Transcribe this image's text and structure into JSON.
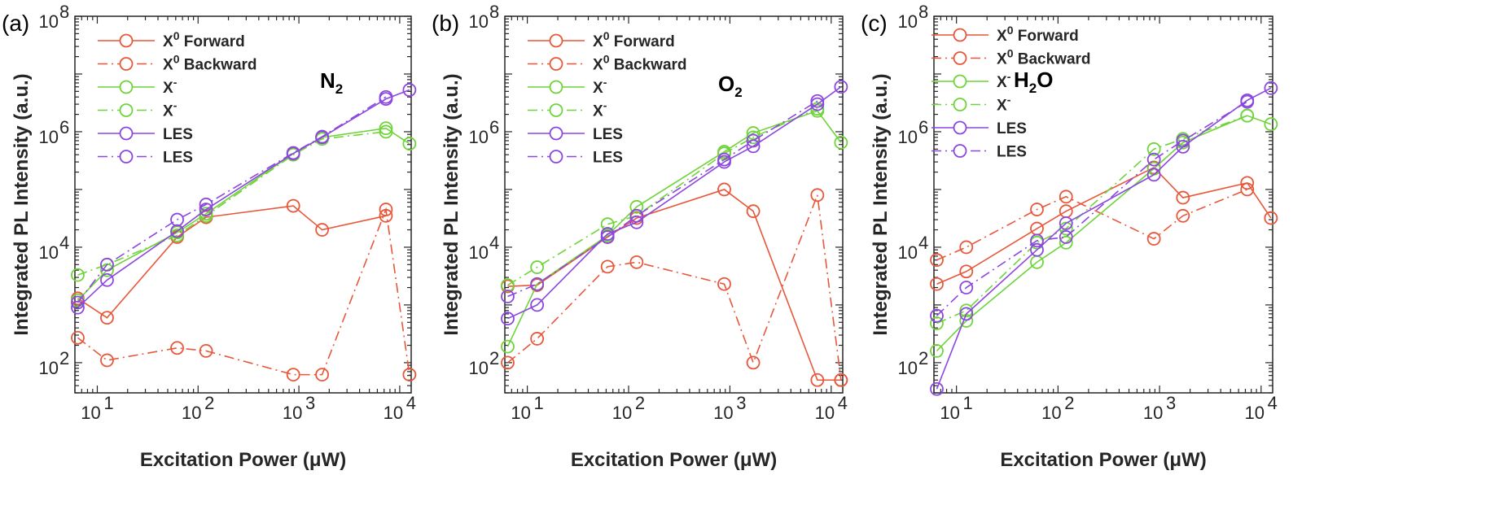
{
  "chart_data": [
    {
      "panel": "(a)",
      "type": "line",
      "annotation": "N",
      "annotation_sub": "2",
      "xscale": "log",
      "yscale": "log",
      "xlim": [
        6.0,
        13000
      ],
      "ylim": [
        30,
        100000000
      ],
      "xlabel": "Excitation Power (μW)",
      "ylabel": "Integrated PL Intensity (a.u.)",
      "xticks": [
        {
          "base": "10",
          "exp": "1",
          "value": 10
        },
        {
          "base": "10",
          "exp": "2",
          "value": 100
        },
        {
          "base": "10",
          "exp": "3",
          "value": 1000
        },
        {
          "base": "10",
          "exp": "4",
          "value": 10000
        }
      ],
      "yticks": [
        {
          "base": "10",
          "exp": "2",
          "value": 100
        },
        {
          "base": "10",
          "exp": "4",
          "value": 10000
        },
        {
          "base": "10",
          "exp": "6",
          "value": 1000000
        },
        {
          "base": "10",
          "exp": "8",
          "value": 100000000
        }
      ],
      "x": [
        6.4,
        12.5,
        62,
        120,
        880,
        1700,
        7300,
        12500
      ],
      "series": [
        {
          "name": "X",
          "sup": "0",
          "suffix": " Forward",
          "style": "solid",
          "color": "#e8573a",
          "values": [
            1300,
            600,
            15000,
            33000,
            52000,
            20000,
            35000,
            null
          ]
        },
        {
          "name": "X",
          "sup": "0",
          "suffix": " Backward",
          "style": "dashdot",
          "color": "#e8573a",
          "values": [
            270,
            110,
            180,
            160,
            62,
            62,
            45000,
            62
          ]
        },
        {
          "name": "X",
          "sup": "-",
          "suffix": "",
          "style": "solid",
          "color": "#6fd43a",
          "values": [
            1200,
            4000,
            18000,
            38000,
            420000,
            800000,
            1150000,
            620000
          ]
        },
        {
          "name": "X",
          "sup": "-",
          "suffix": "",
          "style": "dashdot",
          "color": "#6fd43a",
          "values": [
            3300,
            5000,
            16000,
            35000,
            400000,
            750000,
            1000000,
            null
          ]
        },
        {
          "name": "LES",
          "sup": "",
          "suffix": "",
          "style": "solid",
          "color": "#8b47e0",
          "values": [
            900,
            2700,
            19000,
            45000,
            420000,
            800000,
            3700000,
            5300000
          ]
        },
        {
          "name": "LES",
          "sup": "",
          "suffix": "",
          "style": "dashdot",
          "color": "#8b47e0",
          "values": [
            1100,
            5000,
            30000,
            55000,
            430000,
            820000,
            4000000,
            null
          ]
        }
      ]
    },
    {
      "panel": "(b)",
      "type": "line",
      "annotation": "O",
      "annotation_sub": "2",
      "xscale": "log",
      "yscale": "log",
      "xlim": [
        6.0,
        13000
      ],
      "ylim": [
        30,
        100000000
      ],
      "xlabel": "Excitation Power (μW)",
      "ylabel": "Integrated PL Intensity (a.u.)",
      "xticks": [
        {
          "base": "10",
          "exp": "1",
          "value": 10
        },
        {
          "base": "10",
          "exp": "2",
          "value": 100
        },
        {
          "base": "10",
          "exp": "3",
          "value": 1000
        },
        {
          "base": "10",
          "exp": "4",
          "value": 10000
        }
      ],
      "yticks": [
        {
          "base": "10",
          "exp": "2",
          "value": 100
        },
        {
          "base": "10",
          "exp": "4",
          "value": 10000
        },
        {
          "base": "10",
          "exp": "6",
          "value": 1000000
        },
        {
          "base": "10",
          "exp": "8",
          "value": 100000000
        }
      ],
      "x": [
        6.4,
        12.5,
        62,
        120,
        880,
        1700,
        7300,
        12500
      ],
      "series": [
        {
          "name": "X",
          "sup": "0",
          "suffix": " Forward",
          "style": "solid",
          "color": "#e8573a",
          "values": [
            2100,
            2200,
            15000,
            32000,
            100000,
            42000,
            50,
            50
          ]
        },
        {
          "name": "X",
          "sup": "0",
          "suffix": " Backward",
          "style": "dashdot",
          "color": "#e8573a",
          "values": [
            100,
            260,
            4600,
            5500,
            2300,
            100,
            80000,
            50
          ]
        },
        {
          "name": "X",
          "sup": "-",
          "suffix": "",
          "style": "solid",
          "color": "#6fd43a",
          "values": [
            190,
            2300,
            16000,
            50000,
            450000,
            950000,
            2300000,
            650000
          ]
        },
        {
          "name": "X",
          "sup": "-",
          "suffix": "",
          "style": "dashdot",
          "color": "#6fd43a",
          "values": [
            2200,
            4500,
            25000,
            35000,
            420000,
            800000,
            2500000,
            null
          ]
        },
        {
          "name": "LES",
          "sup": "",
          "suffix": "",
          "style": "solid",
          "color": "#8b47e0",
          "values": [
            580,
            1000,
            17000,
            27000,
            300000,
            560000,
            3000000,
            6000000
          ]
        },
        {
          "name": "LES",
          "sup": "",
          "suffix": "",
          "style": "dashdot",
          "color": "#8b47e0",
          "values": [
            1400,
            2300,
            15000,
            35000,
            330000,
            700000,
            3400000,
            null
          ]
        }
      ]
    },
    {
      "panel": "(c)",
      "type": "line",
      "annotation": "H",
      "annotation_sub": "2",
      "annotation_suffix": "O",
      "xscale": "log",
      "yscale": "log",
      "xlim": [
        6.0,
        13000
      ],
      "ylim": [
        30,
        100000000
      ],
      "xlabel": "Excitation Power (μW)",
      "ylabel": "Integrated PL Intensity (a.u.)",
      "xticks": [
        {
          "base": "10",
          "exp": "1",
          "value": 10
        },
        {
          "base": "10",
          "exp": "2",
          "value": 100
        },
        {
          "base": "10",
          "exp": "3",
          "value": 1000
        },
        {
          "base": "10",
          "exp": "4",
          "value": 10000
        }
      ],
      "yticks": [
        {
          "base": "10",
          "exp": "2",
          "value": 100
        },
        {
          "base": "10",
          "exp": "4",
          "value": 10000
        },
        {
          "base": "10",
          "exp": "6",
          "value": 1000000
        },
        {
          "base": "10",
          "exp": "8",
          "value": 100000000
        }
      ],
      "x": [
        6.4,
        12.5,
        62,
        120,
        880,
        1700,
        7300,
        12500
      ],
      "series": [
        {
          "name": "X",
          "sup": "0",
          "suffix": " Forward",
          "style": "solid",
          "color": "#e8573a",
          "values": [
            2300,
            3800,
            21000,
            42000,
            240000,
            72000,
            130000,
            32000
          ]
        },
        {
          "name": "X",
          "sup": "0",
          "suffix": " Backward",
          "style": "dashdot",
          "color": "#e8573a",
          "values": [
            6000,
            10000,
            45000,
            75000,
            14000,
            35000,
            100000,
            null
          ]
        },
        {
          "name": "X",
          "sup": "-",
          "suffix": "",
          "style": "solid",
          "color": "#6fd43a",
          "values": [
            160,
            530,
            5500,
            12000,
            230000,
            650000,
            1900000,
            1350000
          ]
        },
        {
          "name": "X",
          "sup": "-",
          "suffix": "",
          "style": "dashdot",
          "color": "#6fd43a",
          "values": [
            480,
            800,
            12000,
            21000,
            500000,
            750000,
            1900000,
            null
          ]
        },
        {
          "name": "LES",
          "sup": "",
          "suffix": "",
          "style": "solid",
          "color": "#8b47e0",
          "values": [
            35,
            700,
            9000,
            26000,
            180000,
            550000,
            3500000,
            5700000
          ]
        },
        {
          "name": "LES",
          "sup": "",
          "suffix": "",
          "style": "dashdot",
          "color": "#8b47e0",
          "values": [
            650,
            2000,
            13000,
            15000,
            330000,
            700000,
            3300000,
            null
          ]
        }
      ]
    }
  ]
}
